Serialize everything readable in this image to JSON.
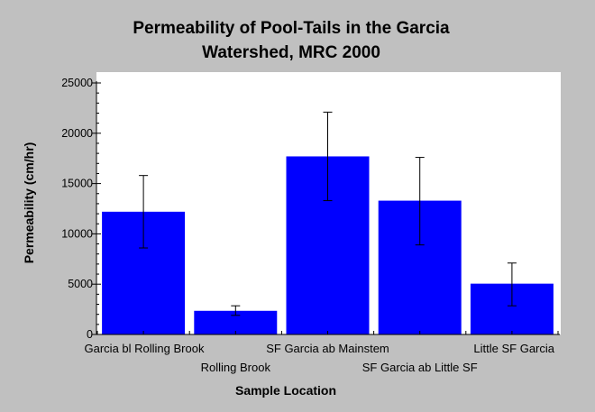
{
  "chart_data": {
    "type": "bar",
    "title_lines": [
      "Permeability of Pool-Tails in the Garcia",
      "Watershed, MRC 2000"
    ],
    "xlabel": "Sample Location",
    "ylabel": "Permeability (cm/hr)",
    "ylim": [
      0,
      25000
    ],
    "yticks": [
      0,
      5000,
      10000,
      15000,
      20000,
      25000
    ],
    "grid": false,
    "legend": "none",
    "categories": [
      "Garcia bl Rolling Brook",
      "Rolling Brook",
      "SF Garcia ab Mainstem",
      "SF Garcia ab Little SF",
      "Little SF Garcia"
    ],
    "values": [
      12200,
      2350,
      17700,
      13300,
      5050
    ],
    "error_low": [
      8600,
      1900,
      13300,
      8900,
      2850
    ],
    "error_high": [
      15800,
      2850,
      22100,
      17600,
      7100
    ],
    "colors": {
      "bar": "#0000ff",
      "background": "#c0c0c0",
      "plot_area": "#ffffff"
    }
  }
}
